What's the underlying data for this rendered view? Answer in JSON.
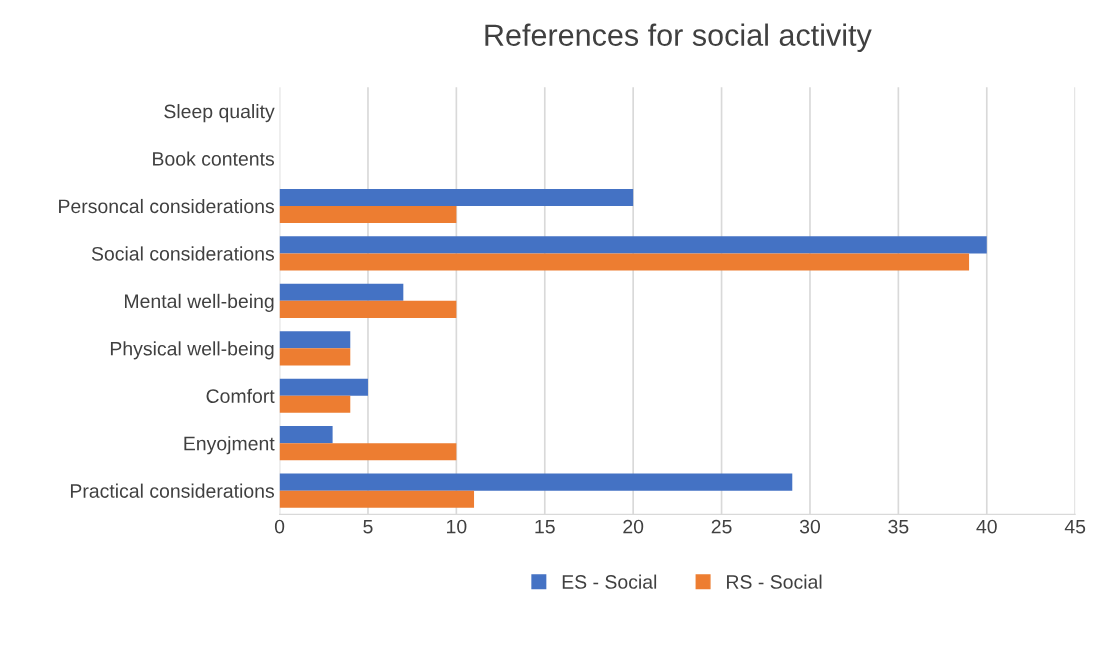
{
  "chart_data": {
    "type": "bar",
    "orientation": "horizontal",
    "title": "References for social activity",
    "categories": [
      "Sleep quality",
      "Book contents",
      "Personcal considerations",
      "Social considerations",
      "Mental well-being",
      "Physical well-being",
      "Comfort",
      "Enyojment",
      "Practical considerations"
    ],
    "series": [
      {
        "name": "ES - Social",
        "color": "#4472c4",
        "values": [
          null,
          null,
          20,
          40,
          7,
          4,
          5,
          3,
          29
        ]
      },
      {
        "name": "RS - Social",
        "color": "#ed7d31",
        "values": [
          null,
          null,
          10,
          39,
          10,
          4,
          4,
          10,
          11
        ]
      }
    ],
    "xlim": [
      0,
      45
    ],
    "xticks": [
      0,
      5,
      10,
      15,
      20,
      25,
      30,
      35,
      40,
      45
    ],
    "grid": "x",
    "legend": "bottom"
  }
}
